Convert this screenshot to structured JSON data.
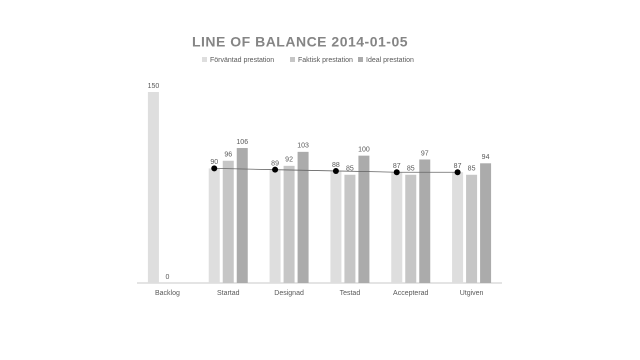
{
  "chart_data": {
    "type": "bar",
    "title": "LINE OF BALANCE 2014-01-05",
    "categories": [
      "Backlog",
      "Startad",
      "Designad",
      "Testad",
      "Accepterad",
      "Utgiven"
    ],
    "series": [
      {
        "name": "Förväntad prestation",
        "color": "#dedede",
        "values": [
          150,
          90,
          89,
          88,
          87,
          87
        ]
      },
      {
        "name": "Faktisk prestation",
        "color": "#c6c6c6",
        "values": [
          0,
          96,
          92,
          85,
          85,
          85
        ]
      },
      {
        "name": "Ideal prestation",
        "color": "#ababab",
        "values": [
          null,
          106,
          103,
          100,
          97,
          94
        ]
      }
    ],
    "legend": "top"
  }
}
